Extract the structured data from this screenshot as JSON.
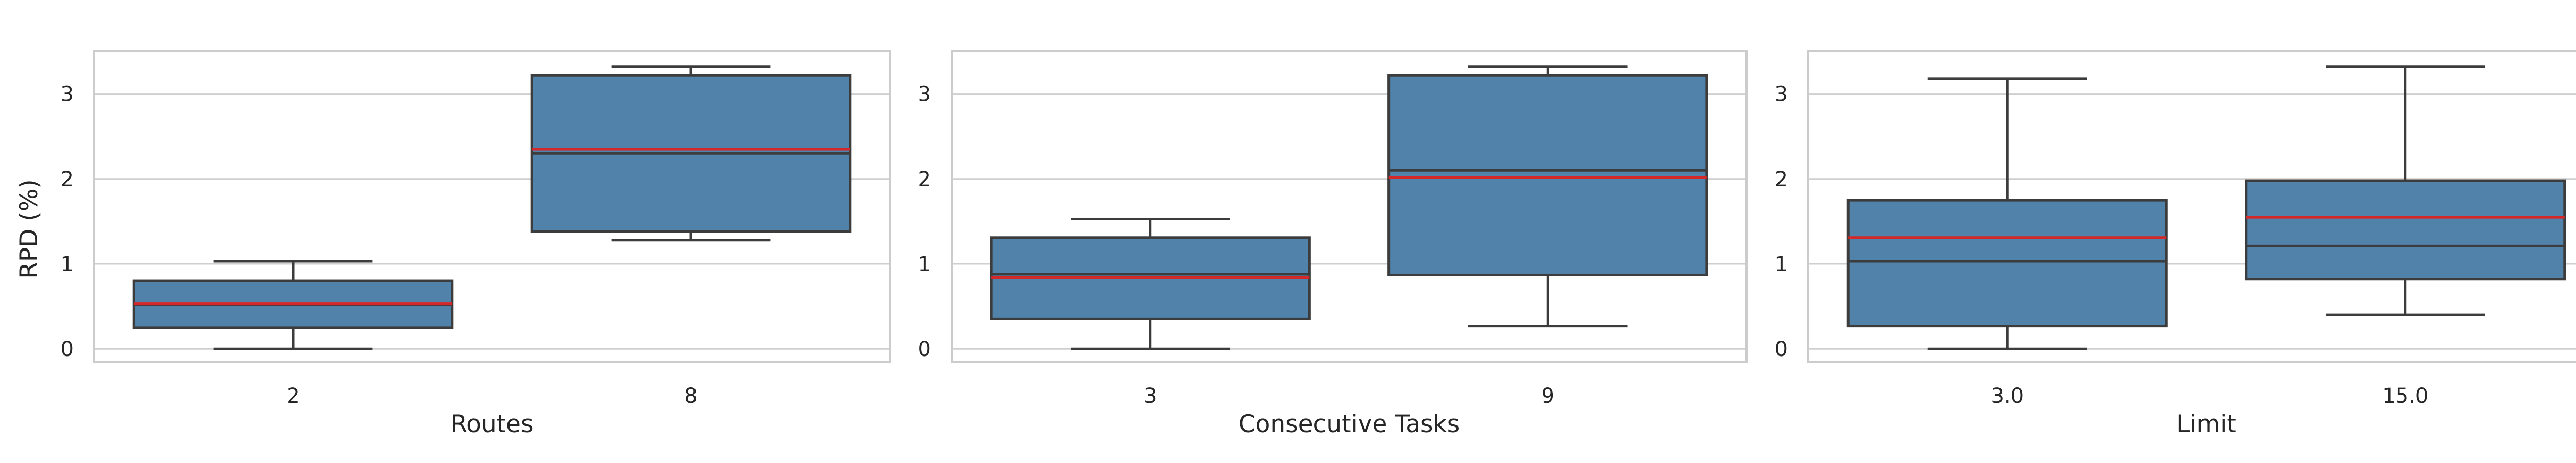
{
  "colors": {
    "box_fill": "#5082aa",
    "box_edge": "#3c3c3c",
    "mean_line": "#d62728",
    "grid": "#cfcfcf",
    "spine": "#cccccc",
    "text": "#262626",
    "background": "#ffffff"
  },
  "chart_data": [
    {
      "type": "box",
      "xlabel": "Routes",
      "ylabel": "RPD (%)",
      "ylim": [
        -0.15,
        3.5
      ],
      "yticks": [
        0,
        1,
        2,
        3
      ],
      "grid": "y-major",
      "categories": [
        "2",
        "8"
      ],
      "boxes": [
        {
          "category": "2",
          "whisker_low": 0.0,
          "q1": 0.25,
          "median": 0.52,
          "mean": 0.53,
          "q3": 0.8,
          "whisker_high": 1.03
        },
        {
          "category": "8",
          "whisker_low": 1.28,
          "q1": 1.38,
          "median": 2.3,
          "mean": 2.35,
          "q3": 3.22,
          "whisker_high": 3.32
        }
      ]
    },
    {
      "type": "box",
      "xlabel": "Consecutive Tasks",
      "ylabel": "",
      "ylim": [
        -0.15,
        3.5
      ],
      "yticks": [
        0,
        1,
        2,
        3
      ],
      "grid": "y-major",
      "categories": [
        "3",
        "9"
      ],
      "boxes": [
        {
          "category": "3",
          "whisker_low": 0.0,
          "q1": 0.35,
          "median": 0.88,
          "mean": 0.84,
          "q3": 1.31,
          "whisker_high": 1.53
        },
        {
          "category": "9",
          "whisker_low": 0.27,
          "q1": 0.87,
          "median": 2.1,
          "mean": 2.02,
          "q3": 3.22,
          "whisker_high": 3.32
        }
      ]
    },
    {
      "type": "box",
      "xlabel": "Limit",
      "ylabel": "",
      "ylim": [
        -0.15,
        3.5
      ],
      "yticks": [
        0,
        1,
        2,
        3
      ],
      "grid": "y-major",
      "categories": [
        "3.0",
        "15.0"
      ],
      "boxes": [
        {
          "category": "3.0",
          "whisker_low": 0.0,
          "q1": 0.27,
          "median": 1.03,
          "mean": 1.31,
          "q3": 1.75,
          "whisker_high": 3.18
        },
        {
          "category": "15.0",
          "whisker_low": 0.4,
          "q1": 0.82,
          "median": 1.21,
          "mean": 1.55,
          "q3": 1.98,
          "whisker_high": 3.32
        }
      ]
    }
  ]
}
